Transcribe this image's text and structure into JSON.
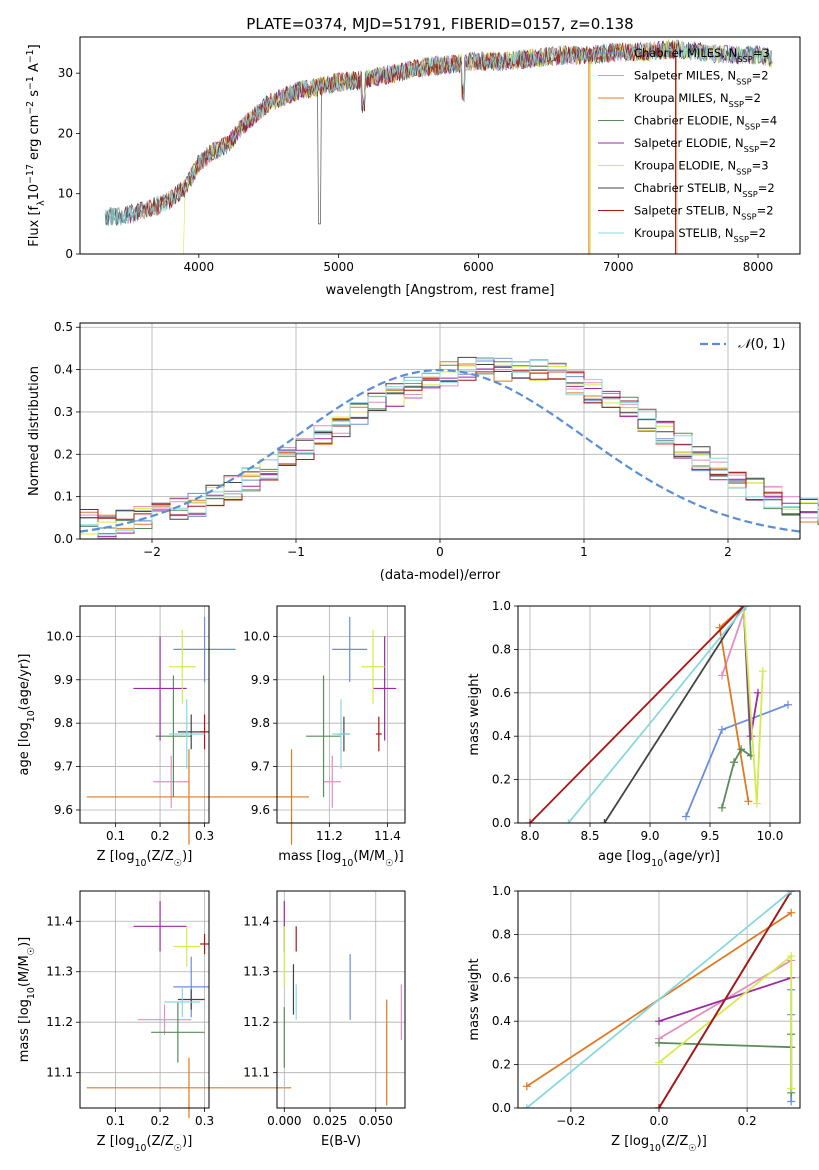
{
  "title": "PLATE=0374, MJD=51791, FIBERID=0157, z=0.138",
  "series_styles": [
    {
      "name": "Chabrier MILES, N_SSP=3",
      "base": "Chabrier MILES, N",
      "sub": "SSP",
      "tail": "=3",
      "color": "#6a8fd8"
    },
    {
      "name": "Salpeter MILES, N_SSP=2",
      "base": "Salpeter MILES, N",
      "sub": "SSP",
      "tail": "=2",
      "color": "#e48fc0"
    },
    {
      "name": "Kroupa MILES, N_SSP=2",
      "base": "Kroupa MILES, N",
      "sub": "SSP",
      "tail": "=2",
      "color": "#e07a22"
    },
    {
      "name": "Chabrier ELODIE, N_SSP=4",
      "base": "Chabrier ELODIE, N",
      "sub": "SSP",
      "tail": "=4",
      "color": "#5a8a5a"
    },
    {
      "name": "Salpeter ELODIE, N_SSP=2",
      "base": "Salpeter ELODIE, N",
      "sub": "SSP",
      "tail": "=2",
      "color": "#9a2aa8"
    },
    {
      "name": "Kroupa ELODIE, N_SSP=3",
      "base": "Kroupa ELODIE, N",
      "sub": "SSP",
      "tail": "=3",
      "color": "#d4ec4a"
    },
    {
      "name": "Chabrier STELIB, N_SSP=2",
      "base": "Chabrier STELIB, N",
      "sub": "SSP",
      "tail": "=2",
      "color": "#444444"
    },
    {
      "name": "Salpeter STELIB, N_SSP=2",
      "base": "Salpeter STELIB, N",
      "sub": "SSP",
      "tail": "=2",
      "color": "#aa1515"
    },
    {
      "name": "Kroupa STELIB, N_SSP=2",
      "base": "Kroupa STELIB, N",
      "sub": "SSP",
      "tail": "=2",
      "color": "#88d8e0"
    }
  ],
  "chart_data": [
    {
      "type": "line",
      "xlabel": "wavelength [Angstrom, rest frame]",
      "ylabel_pre": "Flux [f",
      "ylabel_sub": "λ",
      "ylabel_mid": "10",
      "ylabel_sup": "−17",
      "ylabel_post": " erg cm",
      "ylabel_sup2": "−2",
      "ylabel_post2": " s",
      "ylabel_sup3": "−1",
      "ylabel_post3": " A",
      "ylabel_sup4": "−1",
      "ylabel_end": "]",
      "xlim": [
        3150,
        8300
      ],
      "ylim": [
        0,
        36
      ],
      "xticks": [
        "4000",
        "5000",
        "6000",
        "7000",
        "8000"
      ],
      "yticks": [
        "0",
        "10",
        "20",
        "30"
      ],
      "x": [
        3300,
        3500,
        3700,
        3800,
        3900,
        4000,
        4100,
        4200,
        4300,
        4400,
        4500,
        4600,
        4700,
        4800,
        5000,
        5200,
        5400,
        5600,
        5800,
        6000,
        6200,
        6400,
        6600,
        6800,
        7000,
        7200,
        7400,
        7600,
        7800,
        8000,
        8100
      ],
      "y": [
        6,
        6.5,
        8,
        9,
        11,
        15,
        17,
        18,
        21,
        23,
        25,
        26,
        27,
        27.5,
        28.5,
        29,
        30,
        31,
        31.5,
        32,
        32,
        32.5,
        33,
        33,
        33.5,
        33.5,
        34,
        33.5,
        33,
        33,
        32.5
      ]
    },
    {
      "type": "bar",
      "xlabel": "(data-model)/error",
      "ylabel": "Normed distribution",
      "legend": "N(0,1)",
      "legend_prefix": "𝒩",
      "legend_suffix": "(0, 1)",
      "xlim": [
        -2.5,
        2.5
      ],
      "ylim": [
        0,
        0.51
      ],
      "xticks": [
        "−2",
        "−1",
        "0",
        "1",
        "2"
      ],
      "yticks": [
        "0.0",
        "0.1",
        "0.2",
        "0.3",
        "0.4",
        "0.5"
      ],
      "bin_edges_start": -2.5,
      "bin_width": 0.125,
      "values": [
        0.04,
        0.03,
        0.04,
        0.05,
        0.06,
        0.07,
        0.08,
        0.1,
        0.12,
        0.14,
        0.16,
        0.19,
        0.21,
        0.24,
        0.27,
        0.3,
        0.32,
        0.34,
        0.36,
        0.38,
        0.39,
        0.4,
        0.4,
        0.4,
        0.4,
        0.4,
        0.39,
        0.37,
        0.35,
        0.33,
        0.31,
        0.28,
        0.25,
        0.22,
        0.19,
        0.17,
        0.15,
        0.12,
        0.1,
        0.08,
        0.07,
        0.06,
        0.05,
        0.04,
        0.03,
        0.03,
        0.02,
        0.02,
        0.02,
        0.02
      ]
    },
    {
      "type": "scatter",
      "xlabel_pre": "Z [log",
      "xlabel_sub": "10",
      "xlabel_post": "(Z/Z",
      "xlabel_sub2": "☉",
      "xlabel_end": ")]",
      "ylabel_pre": "age  [log",
      "ylabel_sub": "10",
      "ylabel_post": "(age/yr)]",
      "xlim": [
        0.02,
        0.31
      ],
      "ylim": [
        9.57,
        10.07
      ],
      "xticks": [
        "0.1",
        "0.2",
        "0.3"
      ],
      "xtick_values": [
        0.1,
        0.2,
        0.3
      ],
      "yticks": [
        "9.6",
        "9.7",
        "9.8",
        "9.9",
        "10.0"
      ],
      "ytick_values": [
        9.6,
        9.7,
        9.8,
        9.9,
        10.0
      ],
      "points": [
        {
          "x": 0.3,
          "y": 9.97,
          "xerr": 0.07,
          "yerr": 0.075
        },
        {
          "x": 0.225,
          "y": 9.665,
          "xerr": 0.04,
          "yerr": 0.06
        },
        {
          "x": 0.265,
          "y": 9.63,
          "xerr": 0.23,
          "yerr": 0.11
        },
        {
          "x": 0.23,
          "y": 9.77,
          "xerr": 0.04,
          "yerr": 0.14
        },
        {
          "x": 0.2,
          "y": 9.88,
          "xerr": 0.06,
          "yerr": 0.12
        },
        {
          "x": 0.25,
          "y": 9.93,
          "xerr": 0.03,
          "yerr": 0.085
        },
        {
          "x": 0.27,
          "y": 9.78,
          "xerr": 0.03,
          "yerr": 0.04
        },
        {
          "x": 0.3,
          "y": 9.78,
          "xerr": 0.01,
          "yerr": 0.04
        },
        {
          "x": 0.26,
          "y": 9.775,
          "xerr": 0.04,
          "yerr": 0.08
        }
      ]
    },
    {
      "type": "scatter",
      "xlabel_pre": "mass [log",
      "xlabel_sub": "10",
      "xlabel_post": "(M/M",
      "xlabel_sub2": "☉",
      "xlabel_end": ")]",
      "xlim": [
        11.02,
        11.46
      ],
      "ylim": [
        9.57,
        10.07
      ],
      "xticks": [
        "11.2",
        "11.4"
      ],
      "xtick_values": [
        11.2,
        11.4
      ],
      "yticks": [
        "9.6",
        "9.7",
        "9.8",
        "9.9",
        "10.0"
      ],
      "ytick_values": [
        9.6,
        9.7,
        9.8,
        9.9,
        10.0
      ],
      "points": [
        {
          "x": 11.27,
          "y": 9.97,
          "xerr": 0.06,
          "yerr": 0.075
        },
        {
          "x": 11.21,
          "y": 9.665,
          "xerr": 0.03,
          "yerr": 0.06
        },
        {
          "x": 11.07,
          "y": 9.63,
          "xerr": 0.06,
          "yerr": 0.11
        },
        {
          "x": 11.18,
          "y": 9.77,
          "xerr": 0.06,
          "yerr": 0.14
        },
        {
          "x": 11.39,
          "y": 9.88,
          "xerr": 0.04,
          "yerr": 0.12
        },
        {
          "x": 11.35,
          "y": 9.93,
          "xerr": 0.04,
          "yerr": 0.085
        },
        {
          "x": 11.25,
          "y": 9.775,
          "xerr": 0.02,
          "yerr": 0.04
        },
        {
          "x": 11.37,
          "y": 9.775,
          "xerr": 0.01,
          "yerr": 0.04
        },
        {
          "x": 11.24,
          "y": 9.775,
          "xerr": 0.03,
          "yerr": 0.08
        }
      ]
    },
    {
      "type": "line",
      "xlabel_pre": "age  [log",
      "xlabel_sub": "10",
      "xlabel_post": "(age/yr)]",
      "ylabel": "mass weight",
      "xlim": [
        7.9,
        10.25
      ],
      "ylim": [
        0,
        1
      ],
      "xticks": [
        "8.0",
        "8.5",
        "9.0",
        "9.5",
        "10.0"
      ],
      "xtick_values": [
        8.0,
        8.5,
        9.0,
        9.5,
        10.0
      ],
      "yticks": [
        "0.0",
        "0.2",
        "0.4",
        "0.6",
        "0.8",
        "1.0"
      ],
      "ytick_values": [
        0,
        0.2,
        0.4,
        0.6,
        0.8,
        1.0
      ],
      "series": [
        {
          "name": "Chabrier MILES, N_SSP=3",
          "x": [
            9.3,
            9.6,
            10.15
          ],
          "y": [
            0.03,
            0.43,
            0.545
          ]
        },
        {
          "name": "Salpeter MILES, N_SSP=2",
          "x": [
            9.6,
            9.8
          ],
          "y": [
            0.68,
            1.0
          ]
        },
        {
          "name": "Kroupa MILES, N_SSP=2",
          "x": [
            9.82,
            9.58,
            9.78
          ],
          "y": [
            0.1,
            0.9,
            1.0
          ]
        },
        {
          "name": "Chabrier ELODIE, N_SSP=4",
          "x": [
            9.6,
            9.7,
            9.76,
            9.84,
            9.78
          ],
          "y": [
            0.07,
            0.28,
            0.34,
            0.31,
            1.0
          ]
        },
        {
          "name": "Salpeter ELODIE, N_SSP=2",
          "x": [
            9.9,
            9.84,
            9.78
          ],
          "y": [
            0.6,
            0.4,
            1.0
          ]
        },
        {
          "name": "Kroupa ELODIE, N_SSP=3",
          "x": [
            9.94,
            9.89,
            9.78
          ],
          "y": [
            0.7,
            0.09,
            1.0
          ]
        },
        {
          "name": "Chabrier STELIB, N_SSP=2",
          "x": [
            8.62,
            9.78
          ],
          "y": [
            0.0,
            1.0
          ]
        },
        {
          "name": "Salpeter STELIB, N_SSP=2",
          "x": [
            8.0,
            9.78
          ],
          "y": [
            0.0,
            1.0
          ]
        },
        {
          "name": "Kroupa STELIB, N_SSP=2",
          "x": [
            8.32,
            9.8
          ],
          "y": [
            0.0,
            1.0
          ]
        }
      ]
    },
    {
      "type": "scatter",
      "xlabel_pre": "Z [log",
      "xlabel_sub": "10",
      "xlabel_post": "(Z/Z",
      "xlabel_sub2": "☉",
      "xlabel_end": ")]",
      "ylabel_pre": "mass [log",
      "ylabel_sub": "10",
      "ylabel_post": "(M/M",
      "ylabel_sub2": "☉",
      "ylabel_end": ")]",
      "xlim": [
        0.02,
        0.31
      ],
      "ylim": [
        11.03,
        11.46
      ],
      "xticks": [
        "0.1",
        "0.2",
        "0.3"
      ],
      "xtick_values": [
        0.1,
        0.2,
        0.3
      ],
      "yticks": [
        "11.1",
        "11.2",
        "11.3",
        "11.4"
      ],
      "ytick_values": [
        11.1,
        11.2,
        11.3,
        11.4
      ],
      "points": [
        {
          "x": 0.27,
          "y": 11.27,
          "xerr": 0.04,
          "yerr": 0.06
        },
        {
          "x": 0.21,
          "y": 11.205,
          "xerr": 0.06,
          "yerr": 0.03
        },
        {
          "x": 0.265,
          "y": 11.07,
          "xerr": 0.23,
          "yerr": 0.06
        },
        {
          "x": 0.24,
          "y": 11.18,
          "xerr": 0.06,
          "yerr": 0.06
        },
        {
          "x": 0.2,
          "y": 11.39,
          "xerr": 0.06,
          "yerr": 0.05
        },
        {
          "x": 0.26,
          "y": 11.35,
          "xerr": 0.03,
          "yerr": 0.04
        },
        {
          "x": 0.27,
          "y": 11.245,
          "xerr": 0.03,
          "yerr": 0.02
        },
        {
          "x": 0.3,
          "y": 11.355,
          "xerr": 0.01,
          "yerr": 0.02
        },
        {
          "x": 0.25,
          "y": 11.24,
          "xerr": 0.04,
          "yerr": 0.03
        }
      ]
    },
    {
      "type": "scatter",
      "xlabel": "E(B-V)",
      "xlim": [
        -0.004,
        0.066
      ],
      "ylim": [
        11.03,
        11.46
      ],
      "xticks": [
        "0.000",
        "0.025",
        "0.050"
      ],
      "xtick_values": [
        0,
        0.025,
        0.05
      ],
      "yticks": [
        "11.1",
        "11.2",
        "11.3",
        "11.4"
      ],
      "ytick_values": [
        11.1,
        11.2,
        11.3,
        11.4
      ],
      "points": [
        {
          "x": 0.036,
          "y": 11.27,
          "xerr": 0,
          "yerr": 0.065
        },
        {
          "x": 0.064,
          "y": 11.22,
          "xerr": 0,
          "yerr": 0.055
        },
        {
          "x": 0.056,
          "y": 11.14,
          "xerr": 0,
          "yerr": 0.105
        },
        {
          "x": 0.0,
          "y": 11.17,
          "xerr": 0,
          "yerr": 0.06
        },
        {
          "x": 0.0,
          "y": 11.39,
          "xerr": 0,
          "yerr": 0.05
        },
        {
          "x": 0.0,
          "y": 11.33,
          "xerr": 0,
          "yerr": 0.06
        },
        {
          "x": 0.005,
          "y": 11.265,
          "xerr": 0,
          "yerr": 0.05
        },
        {
          "x": 0.0065,
          "y": 11.365,
          "xerr": 0,
          "yerr": 0.025
        },
        {
          "x": 0.0065,
          "y": 11.24,
          "xerr": 0,
          "yerr": 0.035
        }
      ]
    },
    {
      "type": "line",
      "xlabel_pre": "Z [log",
      "xlabel_sub": "10",
      "xlabel_post": "(Z/Z",
      "xlabel_sub2": "☉",
      "xlabel_end": ")]",
      "ylabel": "mass weight",
      "xlim": [
        -0.32,
        0.32
      ],
      "ylim": [
        0,
        1
      ],
      "xticks": [
        "−0.2",
        "0.0",
        "0.2"
      ],
      "xtick_values": [
        -0.2,
        0.0,
        0.2
      ],
      "yticks": [
        "0.0",
        "0.2",
        "0.4",
        "0.6",
        "0.8",
        "1.0"
      ],
      "ytick_values": [
        0,
        0.2,
        0.4,
        0.6,
        0.8,
        1.0
      ],
      "series": [
        {
          "name": "Chabrier MILES, N_SSP=3",
          "x": [
            0.3,
            0.3,
            0.3
          ],
          "y": [
            0.03,
            0.43,
            0.545
          ]
        },
        {
          "name": "Salpeter MILES, N_SSP=2",
          "x": [
            0.0,
            0.3
          ],
          "y": [
            0.32,
            0.68
          ]
        },
        {
          "name": "Kroupa MILES, N_SSP=2",
          "x": [
            -0.3,
            0.3
          ],
          "y": [
            0.1,
            0.9
          ]
        },
        {
          "name": "Chabrier ELODIE, N_SSP=4",
          "x": [
            0.0,
            0.3,
            0.3,
            0.3
          ],
          "y": [
            0.3,
            0.28,
            0.34,
            0.07
          ]
        },
        {
          "name": "Salpeter ELODIE, N_SSP=2",
          "x": [
            0.0,
            0.3
          ],
          "y": [
            0.4,
            0.6
          ]
        },
        {
          "name": "Kroupa ELODIE, N_SSP=3",
          "x": [
            0.0,
            0.3,
            0.3
          ],
          "y": [
            0.21,
            0.7,
            0.09
          ]
        },
        {
          "name": "Chabrier STELIB, N_SSP=2",
          "x": [
            0.0,
            0.3
          ],
          "y": [
            0.0,
            1.0
          ]
        },
        {
          "name": "Salpeter STELIB, N_SSP=2",
          "x": [
            0.0,
            0.3
          ],
          "y": [
            0.0,
            1.0
          ]
        },
        {
          "name": "Kroupa STELIB, N_SSP=2",
          "x": [
            -0.3,
            0.3
          ],
          "y": [
            0.0,
            1.0
          ]
        }
      ]
    }
  ]
}
